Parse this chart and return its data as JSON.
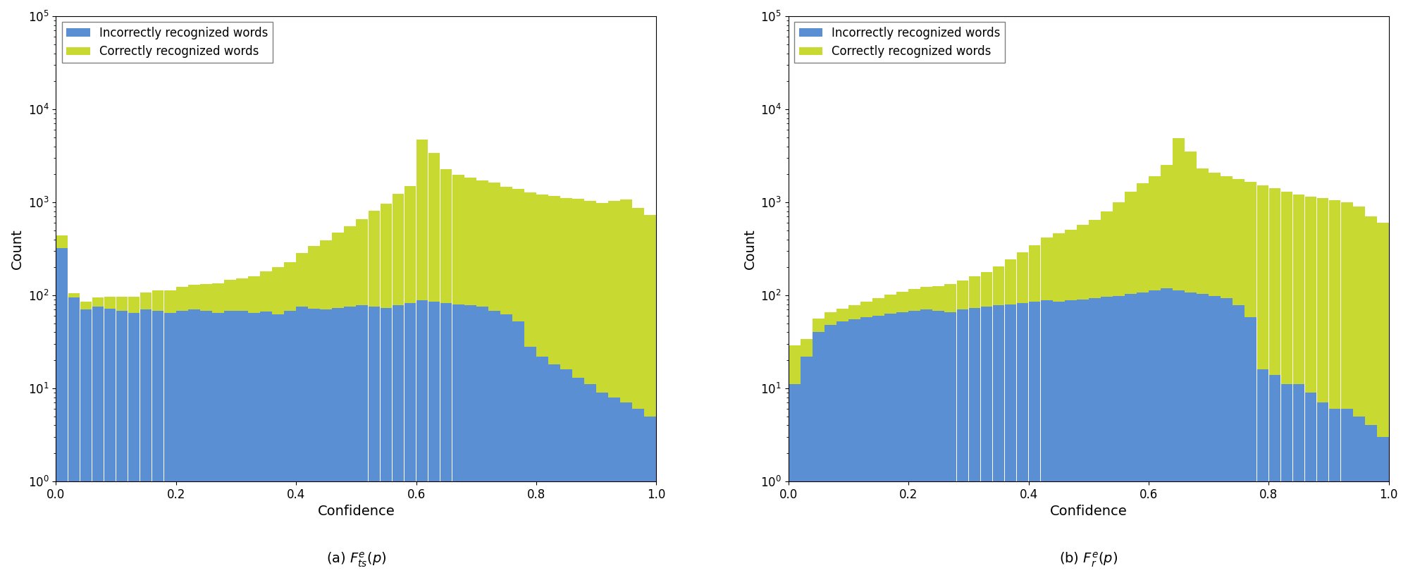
{
  "blue_color": "#5b8fd4",
  "green_color": "#c8d932",
  "background_color": "#ffffff",
  "xlabel": "Confidence",
  "ylabel": "Count",
  "legend_incorrect": "Incorrectly recognized words",
  "legend_correct": "Correctly recognized words",
  "subtitle_left": "(a) $F_{ts}^{e}(p)$",
  "subtitle_right": "(b) $F_{r}^{e}(p)$",
  "nbins": 50,
  "left_incorrect": [
    320,
    95,
    70,
    75,
    72,
    68,
    65,
    70,
    68,
    65,
    68,
    70,
    68,
    65,
    68,
    68,
    65,
    67,
    62,
    68,
    75,
    72,
    70,
    73,
    76,
    78,
    76,
    73,
    78,
    82,
    88,
    85,
    82,
    80,
    78,
    75,
    68,
    62,
    52,
    28,
    22,
    18,
    16,
    13,
    11,
    9,
    8,
    7,
    6,
    5
  ],
  "left_correct": [
    120,
    10,
    15,
    20,
    25,
    28,
    32,
    38,
    45,
    48,
    55,
    60,
    65,
    70,
    78,
    85,
    95,
    115,
    140,
    160,
    210,
    265,
    320,
    400,
    480,
    580,
    730,
    900,
    1150,
    1400,
    4600,
    3300,
    2200,
    1900,
    1750,
    1650,
    1550,
    1400,
    1350,
    1250,
    1200,
    1150,
    1100,
    1080,
    1020,
    970,
    1020,
    1070,
    870,
    720
  ],
  "right_incorrect": [
    11,
    22,
    40,
    48,
    52,
    55,
    58,
    60,
    63,
    66,
    68,
    70,
    68,
    66,
    70,
    73,
    76,
    78,
    80,
    83,
    86,
    88,
    86,
    88,
    90,
    93,
    96,
    98,
    103,
    108,
    112,
    118,
    113,
    108,
    103,
    98,
    93,
    78,
    58,
    16,
    14,
    11,
    11,
    9,
    7,
    6,
    6,
    5,
    4,
    3
  ],
  "right_correct": [
    18,
    12,
    16,
    18,
    20,
    23,
    28,
    33,
    38,
    43,
    48,
    53,
    58,
    66,
    73,
    88,
    103,
    128,
    163,
    208,
    258,
    328,
    378,
    418,
    478,
    558,
    698,
    898,
    1198,
    1498,
    1798,
    2398,
    4798,
    3398,
    2198,
    1998,
    1798,
    1698,
    1598,
    1498,
    1398,
    1298,
    1198,
    1148,
    1098,
    1048,
    998,
    898,
    698,
    598
  ]
}
